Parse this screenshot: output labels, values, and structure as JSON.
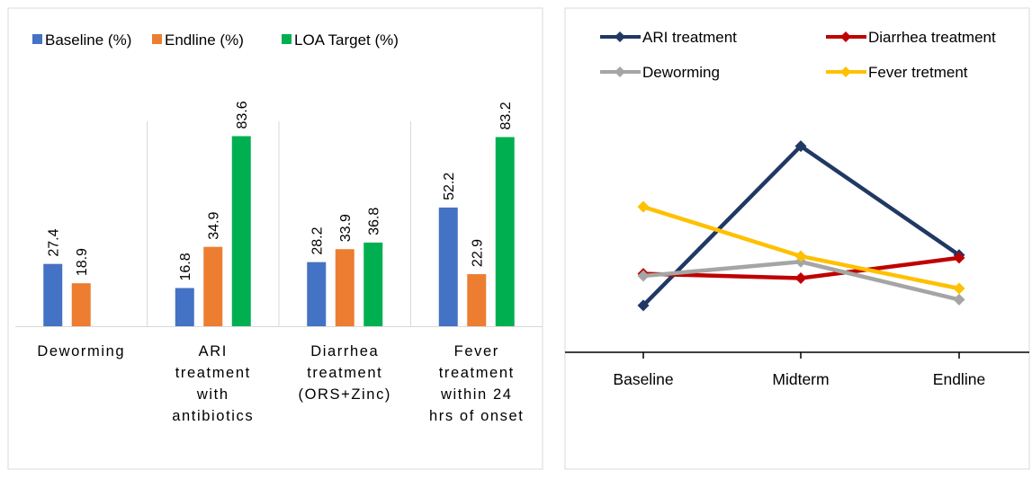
{
  "chart_data": [
    {
      "type": "bar",
      "categories": [
        [
          "Deworming"
        ],
        [
          "ARI",
          "treatment",
          "with",
          "antibiotics"
        ],
        [
          "Diarrhea",
          "treatment",
          "(ORS+Zinc)"
        ],
        [
          "Fever",
          "treatment",
          "within 24",
          "hrs of onset"
        ]
      ],
      "series": [
        {
          "name": "Baseline (%)",
          "color": "#4472C4",
          "values": [
            27.4,
            16.8,
            28.2,
            52.2
          ]
        },
        {
          "name": "Endline (%)",
          "color": "#ED7D31",
          "values": [
            18.9,
            34.9,
            33.9,
            22.9
          ]
        },
        {
          "name": "LOA Target (%)",
          "color": "#00B050",
          "values": [
            null,
            83.6,
            36.8,
            83.2
          ]
        }
      ],
      "ylim": [
        0,
        100
      ],
      "grid": false,
      "data_labels": true,
      "legend_position": "top-left"
    },
    {
      "type": "line",
      "categories": [
        "Baseline",
        "Midterm",
        "Endline"
      ],
      "series": [
        {
          "name": "ARI treatment",
          "color": "#203864",
          "values": [
            16.8,
            74.0,
            34.9
          ]
        },
        {
          "name": "Diarrhea treatment",
          "color": "#C00000",
          "values": [
            28.2,
            26.6,
            33.9
          ]
        },
        {
          "name": "Deworming",
          "color": "#A5A5A5",
          "values": [
            27.4,
            32.5,
            18.9
          ]
        },
        {
          "name": "Fever tretment",
          "color": "#FFC000",
          "values": [
            52.2,
            34.5,
            22.9
          ]
        }
      ],
      "ylim": [
        0,
        100
      ],
      "grid": false,
      "data_labels": false,
      "legend_position": "top"
    }
  ]
}
